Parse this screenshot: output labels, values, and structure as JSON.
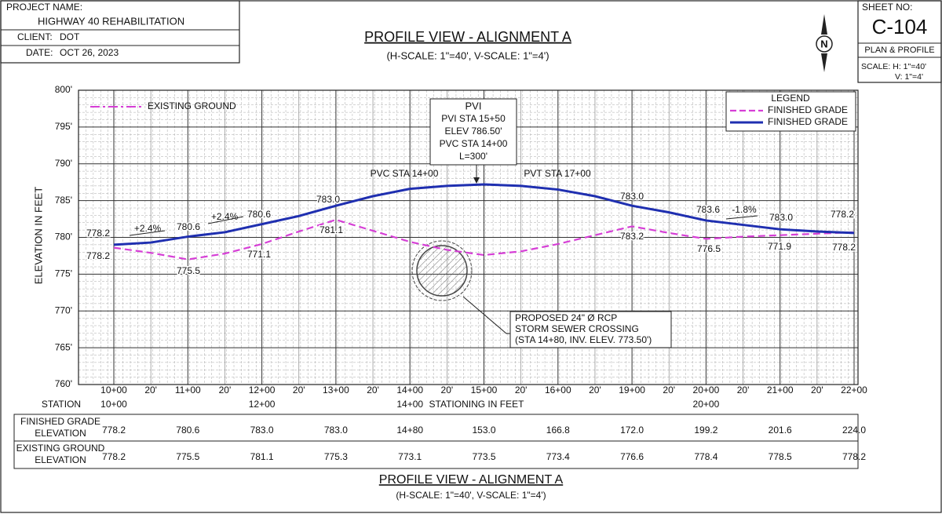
{
  "title_block": {
    "project_label": "PROJECT NAME:",
    "project": "HIGHWAY 40 REHABILITATION",
    "client_label": "CLIENT:",
    "client": "DOT",
    "date_label": "DATE:",
    "date": "OCT 26, 2023"
  },
  "header": {
    "title": "PROFILE VIEW - ALIGNMENT A",
    "subtitle": "(H-SCALE: 1\"=40', V-SCALE: 1\"=4')",
    "north": "N"
  },
  "sheet": {
    "label": "SHEET NO:",
    "number": "C-104",
    "type": "PLAN & PROFILE",
    "scale_h": "SCALE: H: 1\"=40'",
    "scale_v": "V: 1\"=4'"
  },
  "chart_data": {
    "type": "line",
    "y_label": "ELEVATION IN FEET",
    "grid": true,
    "ylim": [
      760,
      800
    ],
    "yticks": [
      {
        "value": 760,
        "label": "760'"
      },
      {
        "value": 765,
        "label": "765'"
      },
      {
        "value": 770,
        "label": "770'"
      },
      {
        "value": 775,
        "label": "775'"
      },
      {
        "value": 780,
        "label": "780'"
      },
      {
        "value": 785,
        "label": "785'"
      },
      {
        "value": 790,
        "label": "790'"
      },
      {
        "value": 795,
        "label": "795'"
      },
      {
        "value": 800,
        "label": "800'"
      }
    ],
    "categories": [
      "10+00",
      "20'",
      "11+00",
      "20'",
      "12+00",
      "20'",
      "13+00",
      "20'",
      "14+00",
      "20'",
      "15+00",
      "20'",
      "16+00",
      "20'",
      "19+00",
      "20'",
      "20+00",
      "20'",
      "21+00",
      "20'",
      "22+00"
    ],
    "sub_categories": [
      "10+00",
      "12+00",
      "14+00",
      "20+00"
    ],
    "station_label": "STATION",
    "stationing_label": "STATIONING IN FEET",
    "existing_label": "EXISTING GROUND",
    "legend": {
      "title": "LEGEND",
      "position": "top-right"
    },
    "series": [
      {
        "name": "FINISHED GRADE",
        "color": "#d63fd6",
        "style": "dashed",
        "values": [
          778.6,
          777.9,
          777.0,
          777.8,
          779.1,
          780.8,
          782.4,
          780.9,
          779.4,
          778.3,
          777.6,
          778.1,
          779.1,
          780.3,
          781.5,
          780.6,
          779.8,
          780.1,
          780.3,
          780.5,
          780.7
        ]
      },
      {
        "name": "FINISHED GRADE",
        "color": "#1f2fb0",
        "style": "solid",
        "values": [
          779.0,
          779.3,
          780.1,
          780.7,
          781.8,
          782.9,
          784.3,
          785.6,
          786.6,
          787.0,
          787.2,
          787.0,
          786.5,
          785.6,
          784.3,
          783.4,
          782.3,
          781.7,
          781.1,
          780.8,
          780.6
        ]
      }
    ],
    "annotations": [
      "778.2",
      "+2.4%",
      "780.6",
      "+2.4%",
      "780.6",
      "783.0",
      "781.1",
      "783.0",
      "783.6",
      "-1.8%",
      "783.0",
      "778.2",
      "778.2",
      "775.5",
      "771.1",
      "783.2",
      "776.5",
      "771.9",
      "778.2"
    ],
    "pvc_label": "PVC STA 14+00",
    "pvt_label": "PVT STA 17+00",
    "pvi": [
      "PVI",
      "PVI STA 15+50",
      "ELEV 786.50'",
      "PVC STA 14+00",
      "L=300'"
    ],
    "sewer": [
      "PROPOSED 24\" Ø RCP",
      "STORM SEWER CROSSING",
      "(STA 14+80, INV. ELEV. 773.50')"
    ]
  },
  "table": {
    "rows": [
      {
        "label": [
          "FINISHED GRADE",
          "ELEVATION"
        ],
        "cells": [
          "778.2",
          "780.6",
          "783.0",
          "783.0",
          "14+80",
          "153.0",
          "166.8",
          "172.0",
          "199.2",
          "201.6",
          "224.0"
        ]
      },
      {
        "label": [
          "EXISTING GROUND",
          "ELEVATION"
        ],
        "cells": [
          "778.2",
          "775.5",
          "781.1",
          "775.3",
          "773.1",
          "773.5",
          "773.4",
          "776.6",
          "778.4",
          "778.5",
          "778.2"
        ]
      }
    ]
  },
  "footer": {
    "title": "PROFILE VIEW - ALIGNMENT A",
    "subtitle": "(H-SCALE: 1\"=40', V-SCALE: 1\"=4')"
  }
}
